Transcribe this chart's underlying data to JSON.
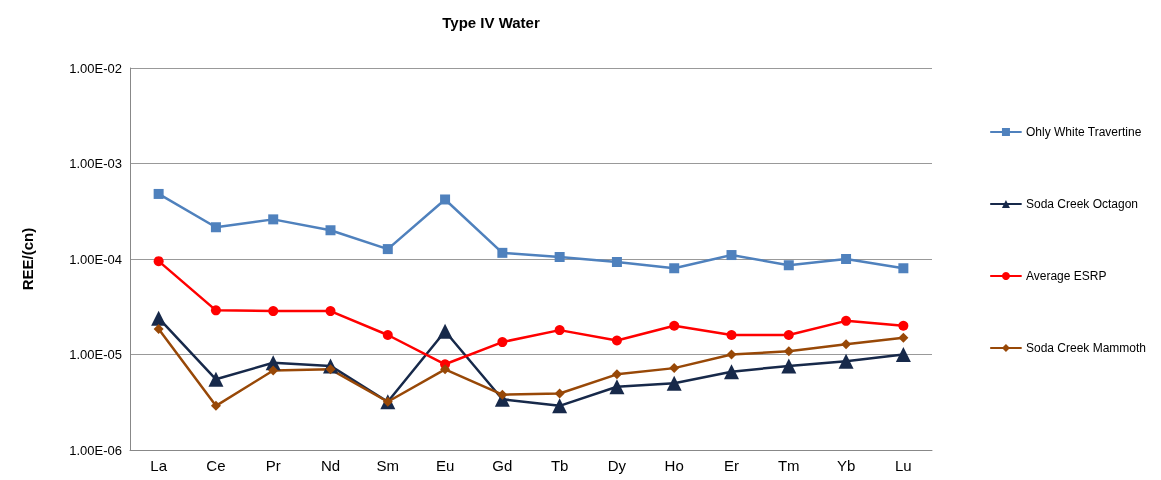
{
  "chart_data": {
    "type": "line",
    "title": "Type IV Water",
    "ylabel": "REE/(cn)",
    "categories": [
      "La",
      "Ce",
      "Pr",
      "Nd",
      "Sm",
      "Eu",
      "Gd",
      "Tb",
      "Dy",
      "Ho",
      "Er",
      "Tm",
      "Yb",
      "Lu"
    ],
    "series": [
      {
        "name": "Ohly White Travertine",
        "color": "#4f81bd",
        "marker": "square",
        "values": [
          0.00048,
          0.000215,
          0.00026,
          0.0002,
          0.000127,
          0.00042,
          0.000116,
          0.000105,
          9.3e-05,
          8e-05,
          0.00011,
          8.6e-05,
          0.0001,
          8e-05
        ]
      },
      {
        "name": "Soda Creek Octagon",
        "color": "#17294a",
        "marker": "triangle",
        "values": [
          2.4e-05,
          5.5e-06,
          8.2e-06,
          7.6e-06,
          3.2e-06,
          1.75e-05,
          3.4e-06,
          2.9e-06,
          4.6e-06,
          5e-06,
          6.6e-06,
          7.6e-06,
          8.5e-06,
          1e-05
        ]
      },
      {
        "name": "Average ESRP",
        "color": "#ff0000",
        "marker": "circle",
        "values": [
          9.5e-05,
          2.9e-05,
          2.85e-05,
          2.85e-05,
          1.6e-05,
          7.9e-06,
          1.35e-05,
          1.8e-05,
          1.4e-05,
          2e-05,
          1.6e-05,
          1.6e-05,
          2.25e-05,
          2e-05
        ]
      },
      {
        "name": "Soda Creek Mammoth",
        "color": "#984807",
        "marker": "diamond",
        "values": [
          1.85e-05,
          2.9e-06,
          6.8e-06,
          7e-06,
          3.2e-06,
          7e-06,
          3.8e-06,
          3.9e-06,
          6.2e-06,
          7.2e-06,
          1e-05,
          1.08e-05,
          1.28e-05,
          1.5e-05
        ]
      }
    ],
    "log": "y",
    "ylim": [
      1e-06,
      0.01
    ],
    "yticks": [
      {
        "value": 1e-06,
        "label": "1.00E-06"
      },
      {
        "value": 1e-05,
        "label": "1.00E-05"
      },
      {
        "value": 0.0001,
        "label": "1.00E-04"
      },
      {
        "value": 0.001,
        "label": "1.00E-03"
      },
      {
        "value": 0.01,
        "label": "1.00E-02"
      }
    ],
    "grid": "y",
    "legend": "right",
    "line_style": "solid"
  }
}
